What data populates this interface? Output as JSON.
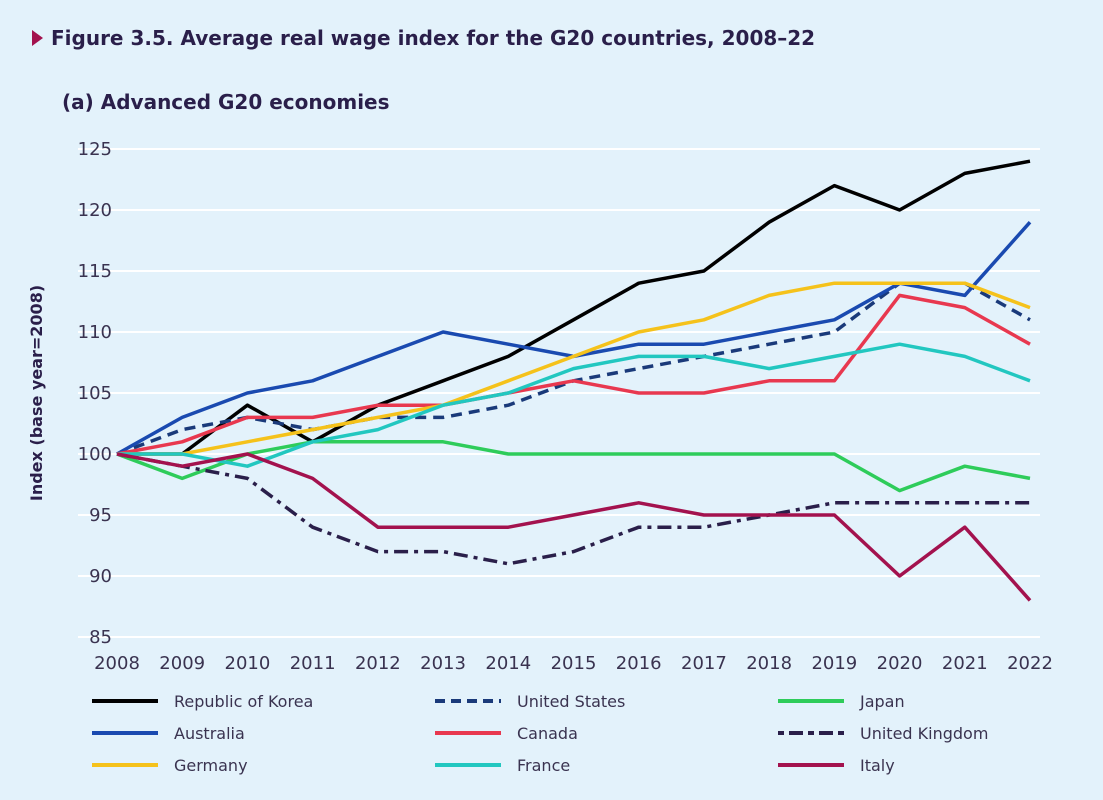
{
  "figure": {
    "title": "Figure 3.5.  Average real wage index for the G20 countries, 2008–22",
    "subtitle": "(a) Advanced G20 economies"
  },
  "chart_data": {
    "type": "line",
    "title": "Average real wage index for the G20 countries, 2008–22",
    "subtitle": "(a) Advanced G20 economies",
    "xlabel": "",
    "ylabel": "Index (base year=2008)",
    "ylim": [
      85,
      125
    ],
    "yticks": [
      85,
      90,
      95,
      100,
      105,
      110,
      115,
      120,
      125
    ],
    "grid": true,
    "legend_position": "bottom",
    "x": [
      "2008",
      "2009",
      "2010",
      "2011",
      "2012",
      "2013",
      "2014",
      "2015",
      "2016",
      "2017",
      "2018",
      "2019",
      "2020",
      "2021",
      "2022"
    ],
    "series": [
      {
        "name": "Republic of Korea",
        "color": "#000000",
        "style": "solid",
        "values": [
          100,
          100,
          104,
          101,
          104,
          106,
          108,
          111,
          114,
          115,
          119,
          122,
          120,
          123,
          124
        ]
      },
      {
        "name": "United States",
        "color": "#1a3a7a",
        "style": "dashed",
        "values": [
          100,
          102,
          103,
          102,
          103,
          103,
          104,
          106,
          107,
          108,
          109,
          110,
          114,
          114,
          111
        ]
      },
      {
        "name": "Japan",
        "color": "#2ecc5a",
        "style": "solid",
        "values": [
          100,
          98,
          100,
          101,
          101,
          101,
          100,
          100,
          100,
          100,
          100,
          100,
          97,
          99,
          98
        ]
      },
      {
        "name": "Australia",
        "color": "#1a4ab0",
        "style": "solid",
        "values": [
          100,
          103,
          105,
          106,
          108,
          110,
          109,
          108,
          109,
          109,
          110,
          111,
          114,
          113,
          119
        ]
      },
      {
        "name": "Canada",
        "color": "#e8384f",
        "style": "solid",
        "values": [
          100,
          101,
          103,
          103,
          104,
          104,
          105,
          106,
          105,
          105,
          106,
          106,
          113,
          112,
          109
        ]
      },
      {
        "name": "United Kingdom",
        "color": "#2a1f4a",
        "style": "dashdot",
        "values": [
          100,
          99,
          98,
          94,
          92,
          92,
          91,
          92,
          94,
          94,
          95,
          96,
          96,
          96,
          96
        ]
      },
      {
        "name": "Germany",
        "color": "#f5c21b",
        "style": "solid",
        "values": [
          100,
          100,
          101,
          102,
          103,
          104,
          106,
          108,
          110,
          111,
          113,
          114,
          114,
          114,
          112
        ]
      },
      {
        "name": "France",
        "color": "#22c7c0",
        "style": "solid",
        "values": [
          100,
          100,
          99,
          101,
          102,
          104,
          105,
          107,
          108,
          108,
          107,
          108,
          109,
          108,
          106
        ]
      },
      {
        "name": "Italy",
        "color": "#a3124e",
        "style": "solid",
        "values": [
          100,
          99,
          100,
          98,
          94,
          94,
          94,
          95,
          96,
          95,
          95,
          95,
          90,
          94,
          88
        ]
      }
    ]
  }
}
